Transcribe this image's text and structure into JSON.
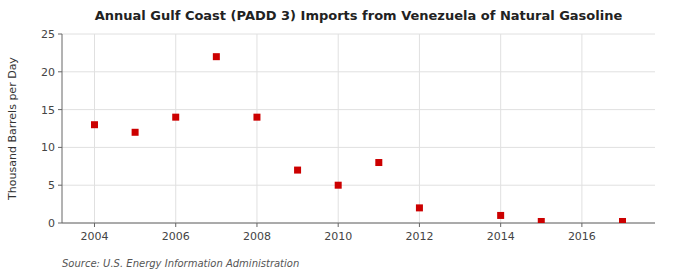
{
  "chart_data": {
    "type": "scatter",
    "title": "Annual Gulf Coast (PADD 3) Imports from Venezuela of Natural Gasoline",
    "ylabel": "Thousand Barrels per Day",
    "source": "Source: U.S. Energy Information Administration",
    "x": [
      2004,
      2005,
      2006,
      2007,
      2008,
      2009,
      2010,
      2011,
      2012,
      2014,
      2015,
      2017
    ],
    "values": [
      13,
      12,
      14,
      22,
      14,
      7,
      5,
      8,
      2,
      1,
      0.2,
      0.2
    ],
    "color": "#cc0000",
    "marker": "square",
    "xlim": [
      2003.2,
      2017.8
    ],
    "ylim": [
      0,
      25
    ],
    "xticks": [
      2004,
      2006,
      2008,
      2010,
      2012,
      2014,
      2016
    ],
    "yticks": [
      0,
      5,
      10,
      15,
      20,
      25
    ],
    "grid": true
  }
}
